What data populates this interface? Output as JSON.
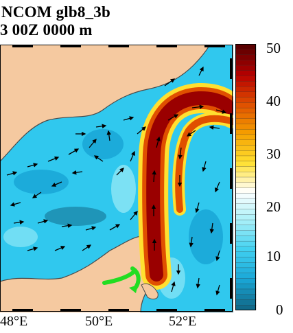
{
  "header": {
    "line1": "NCOM glb8_3b",
    "line2": "3 00Z   0000 m"
  },
  "map": {
    "land_color": "#f5c9a0",
    "arrow_icon": "black-arrow-icon",
    "annotation_icon": "green-curved-arrow-icon",
    "lon_labels": [
      "48°E",
      "50°E",
      "52°E"
    ]
  },
  "colorbar": {
    "ticks": [
      "50",
      "40",
      "30",
      "20",
      "10",
      "0"
    ],
    "range": [
      0,
      50
    ],
    "colors_top_to_bottom": [
      "#5a0000",
      "#b80000",
      "#e05000",
      "#f5a000",
      "#ffe030",
      "#ffffff",
      "#a8f0f8",
      "#40d0f0",
      "#1aa8d8",
      "#106a8a"
    ]
  }
}
